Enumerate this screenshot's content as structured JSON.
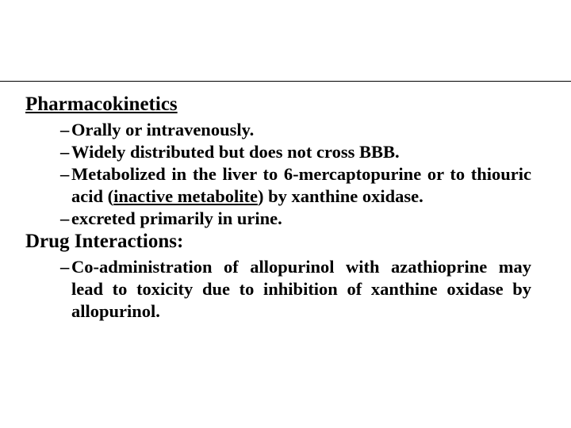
{
  "headings": {
    "pharmacokinetics": "Pharmacokinetics",
    "drug_interactions": "Drug Interactions:"
  },
  "pk_items": {
    "i0": "Orally or intravenously.",
    "i1": "Widely distributed but does not cross BBB.",
    "i2_pre": "Metabolized in the liver to 6-mercaptopurine or to thiouric acid (",
    "i2_underlined": "inactive metabolite",
    "i2_post": ") by xanthine oxidase.",
    "i3": "excreted primarily in urine."
  },
  "di_items": {
    "i0": "Co-administration of allopurinol with azathioprine may lead to toxicity due to inhibition of xanthine oxidase by allopurinol."
  },
  "colors": {
    "text": "#000000",
    "background": "#ffffff",
    "divider": "#000000"
  }
}
